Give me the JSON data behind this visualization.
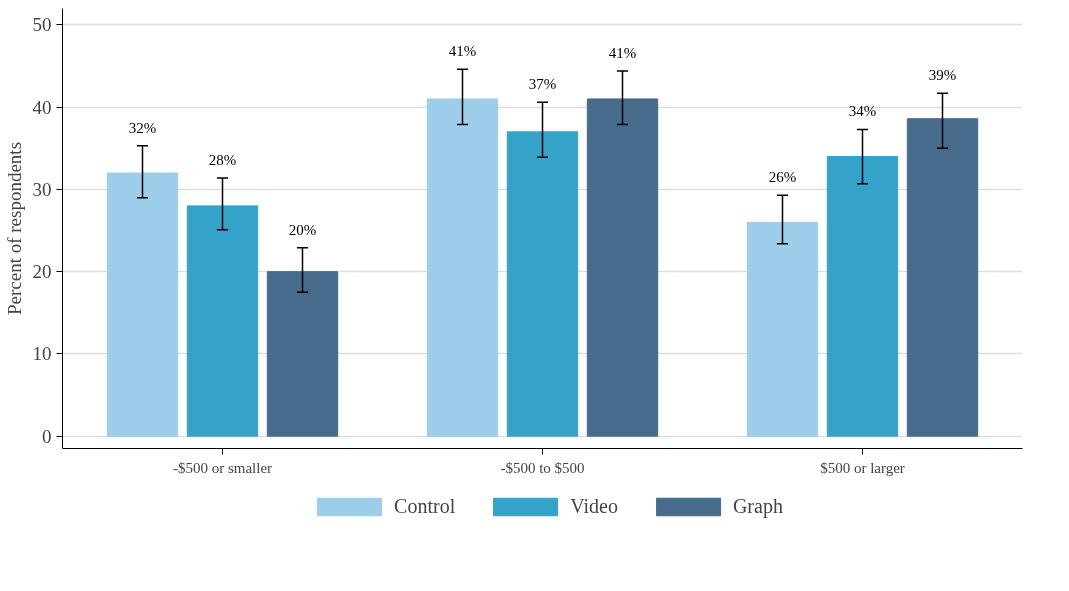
{
  "chart_data": {
    "type": "bar",
    "ylabel": "Percent of respondents",
    "categories": [
      "-$500 or smaller",
      "-$500 to $500",
      "$500 or larger"
    ],
    "series": [
      {
        "name": "Control",
        "color": "#9ccde9",
        "values": [
          32,
          41,
          26
        ],
        "errors": [
          [
            29.0,
            35.3
          ],
          [
            37.9,
            44.6
          ],
          [
            23.4,
            29.3
          ]
        ],
        "value_labels": [
          "32%",
          "41%",
          "26%"
        ]
      },
      {
        "name": "Video",
        "color": "#35a2c9",
        "values": [
          28,
          37,
          34
        ],
        "errors": [
          [
            25.1,
            31.4
          ],
          [
            33.9,
            40.6
          ],
          [
            30.7,
            37.3
          ]
        ],
        "value_labels": [
          "28%",
          "37%",
          "34%"
        ]
      },
      {
        "name": "Graph",
        "color": "#466b8b",
        "values": [
          20,
          41,
          38.6
        ],
        "errors": [
          [
            17.5,
            22.9
          ],
          [
            37.9,
            44.4
          ],
          [
            35.0,
            41.7
          ]
        ],
        "value_labels": [
          "20%",
          "41%",
          "39%"
        ]
      }
    ],
    "ylim": [
      -1.5,
      52
    ],
    "yticks": [
      0,
      10,
      20,
      30,
      40,
      50
    ],
    "grid": "y",
    "legend": "bottom"
  }
}
